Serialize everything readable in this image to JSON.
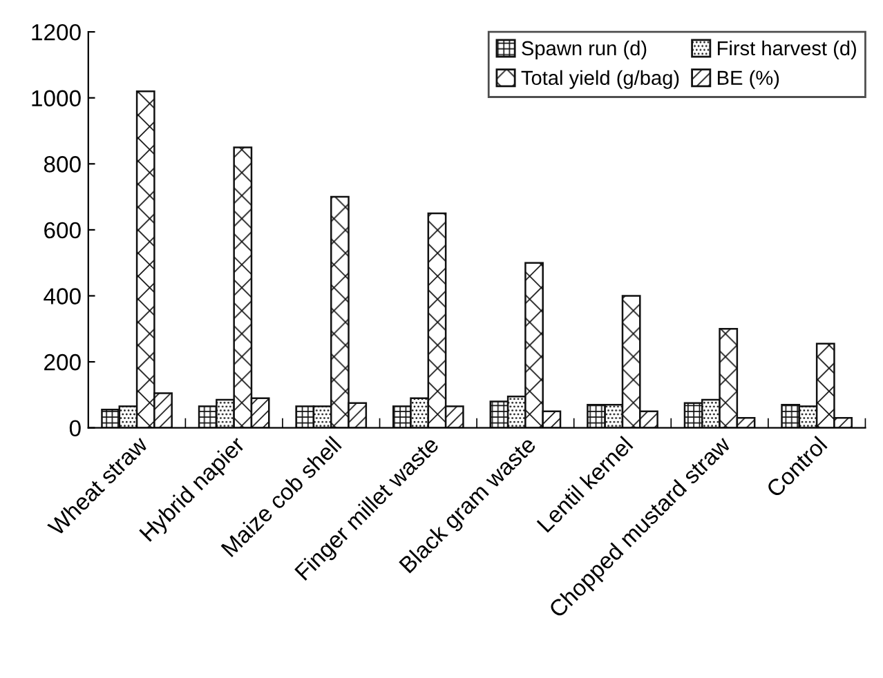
{
  "chart_data": {
    "type": "bar",
    "categories": [
      "Wheat straw",
      "Hybrid napier",
      "Maize cob shell",
      "Finger millet waste",
      "Black gram waste",
      "Lentil kernel",
      "Chopped mustard straw",
      "Control"
    ],
    "series": [
      {
        "name": "Spawn run (d)",
        "color": "#111111",
        "values": [
          55,
          65,
          65,
          65,
          80,
          70,
          75,
          70
        ]
      },
      {
        "name": "First harvest (d)",
        "color": "#111111",
        "values": [
          65,
          85,
          65,
          90,
          95,
          70,
          85,
          65
        ]
      },
      {
        "name": "Total yield (g/bag)",
        "color": "#111111",
        "values": [
          1020,
          850,
          700,
          650,
          500,
          400,
          300,
          255
        ]
      },
      {
        "name": "BE (%)",
        "color": "#111111",
        "values": [
          105,
          90,
          75,
          65,
          50,
          50,
          30,
          30
        ]
      }
    ],
    "ylim": [
      0,
      1200
    ],
    "yticks": [
      0,
      200,
      400,
      600,
      800,
      1000,
      1200
    ],
    "grid": false,
    "legend": "top right"
  }
}
